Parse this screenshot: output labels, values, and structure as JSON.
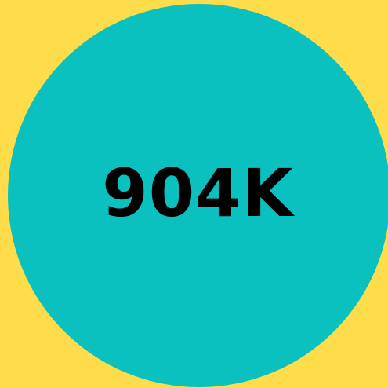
{
  "stat": {
    "value": "904K"
  },
  "colors": {
    "background": "#FFDD4A",
    "circle": "#0BC1BF",
    "text": "#000000"
  }
}
